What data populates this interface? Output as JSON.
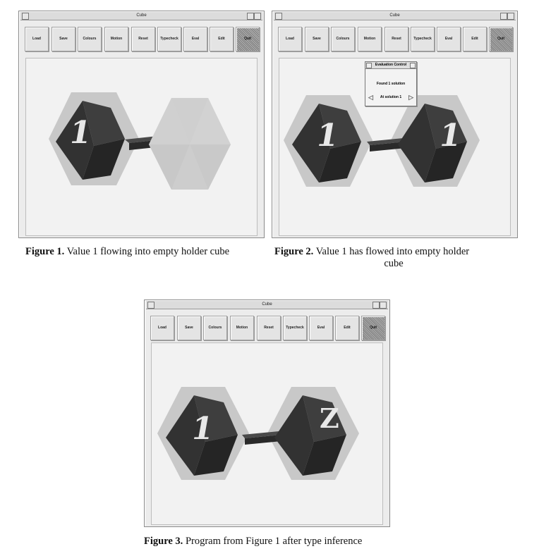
{
  "toolbar_labels": [
    "Load",
    "Save",
    "Colours",
    "Motion",
    "Reset",
    "Typecheck",
    "Eval",
    "Edit",
    "Quit"
  ],
  "window_title": "Cube",
  "figures": [
    {
      "caption_label": "Figure 1.",
      "caption_text": "Value 1 flowing into empty holder cube",
      "left_cube": "1",
      "right_cube": ""
    },
    {
      "caption_label": "Figure 2.",
      "caption_text": "Value 1 has flowed into empty holder",
      "caption_text2": "cube",
      "left_cube": "1",
      "right_cube": "1"
    },
    {
      "caption_label": "Figure 3.",
      "caption_text": "Program from Figure 1 after type inference",
      "left_cube": "1",
      "right_cube": "Z"
    }
  ],
  "dialog": {
    "title": "Evaluation Control",
    "message": "Found 1 solution",
    "nav_label": "At solution 1",
    "prev_icon": "left-arrow-icon",
    "next_icon": "right-arrow-icon"
  },
  "colors": {
    "cube_front": "#3a3a3a",
    "cube_side": "#262626",
    "cube_top": "#4e4e4e",
    "halo": "#c8c8c8",
    "ghost": "#c9c9c9",
    "connector": "#2e2e2e"
  }
}
